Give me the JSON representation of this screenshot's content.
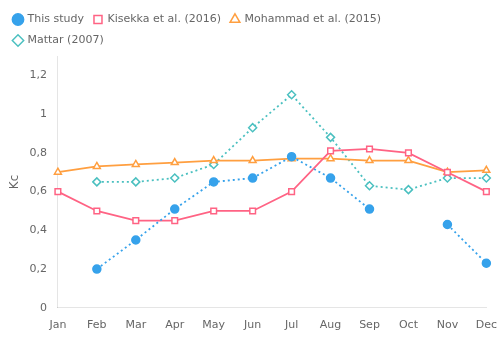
{
  "chart_data": {
    "type": "line",
    "categories": [
      "Jan",
      "Feb",
      "Mar",
      "Apr",
      "May",
      "Jun",
      "Jul",
      "Aug",
      "Sep",
      "Oct",
      "Nov",
      "Dec"
    ],
    "series": [
      {
        "name": "This study",
        "values": [
          null,
          0.2,
          0.35,
          0.51,
          0.65,
          0.67,
          0.78,
          0.67,
          0.51,
          null,
          0.43,
          0.23
        ],
        "marker": "circle",
        "line_style": "dotted"
      },
      {
        "name": "Kisekka et al. (2016)",
        "values": [
          0.6,
          0.5,
          0.45,
          0.45,
          0.5,
          0.5,
          0.6,
          0.81,
          0.82,
          0.8,
          0.7,
          0.6
        ],
        "marker": "square-open",
        "line_style": "solid"
      },
      {
        "name": "Mohammad et al. (2015)",
        "values": [
          0.7,
          0.73,
          0.74,
          0.75,
          0.76,
          0.76,
          0.77,
          0.77,
          0.76,
          0.76,
          0.7,
          0.71
        ],
        "marker": "triangle-open",
        "line_style": "solid"
      },
      {
        "name": "Mattar (2007)",
        "values": [
          null,
          0.65,
          0.65,
          0.67,
          0.74,
          0.93,
          1.1,
          0.88,
          0.63,
          0.61,
          0.67,
          0.67
        ],
        "marker": "diamond-open",
        "line_style": "dotted"
      }
    ],
    "ylabel": "Kc",
    "ylim": [
      0,
      1.3
    ],
    "yticks": [
      0,
      {
        "value": 0.2,
        "label": "0,2"
      },
      {
        "value": 0.4,
        "label": "0,4"
      },
      {
        "value": 0.6,
        "label": "0,6"
      },
      {
        "value": 0.8,
        "label": "0,8"
      },
      1,
      {
        "value": 1.2,
        "label": "1,2"
      }
    ],
    "grid": false,
    "legend": "top"
  }
}
